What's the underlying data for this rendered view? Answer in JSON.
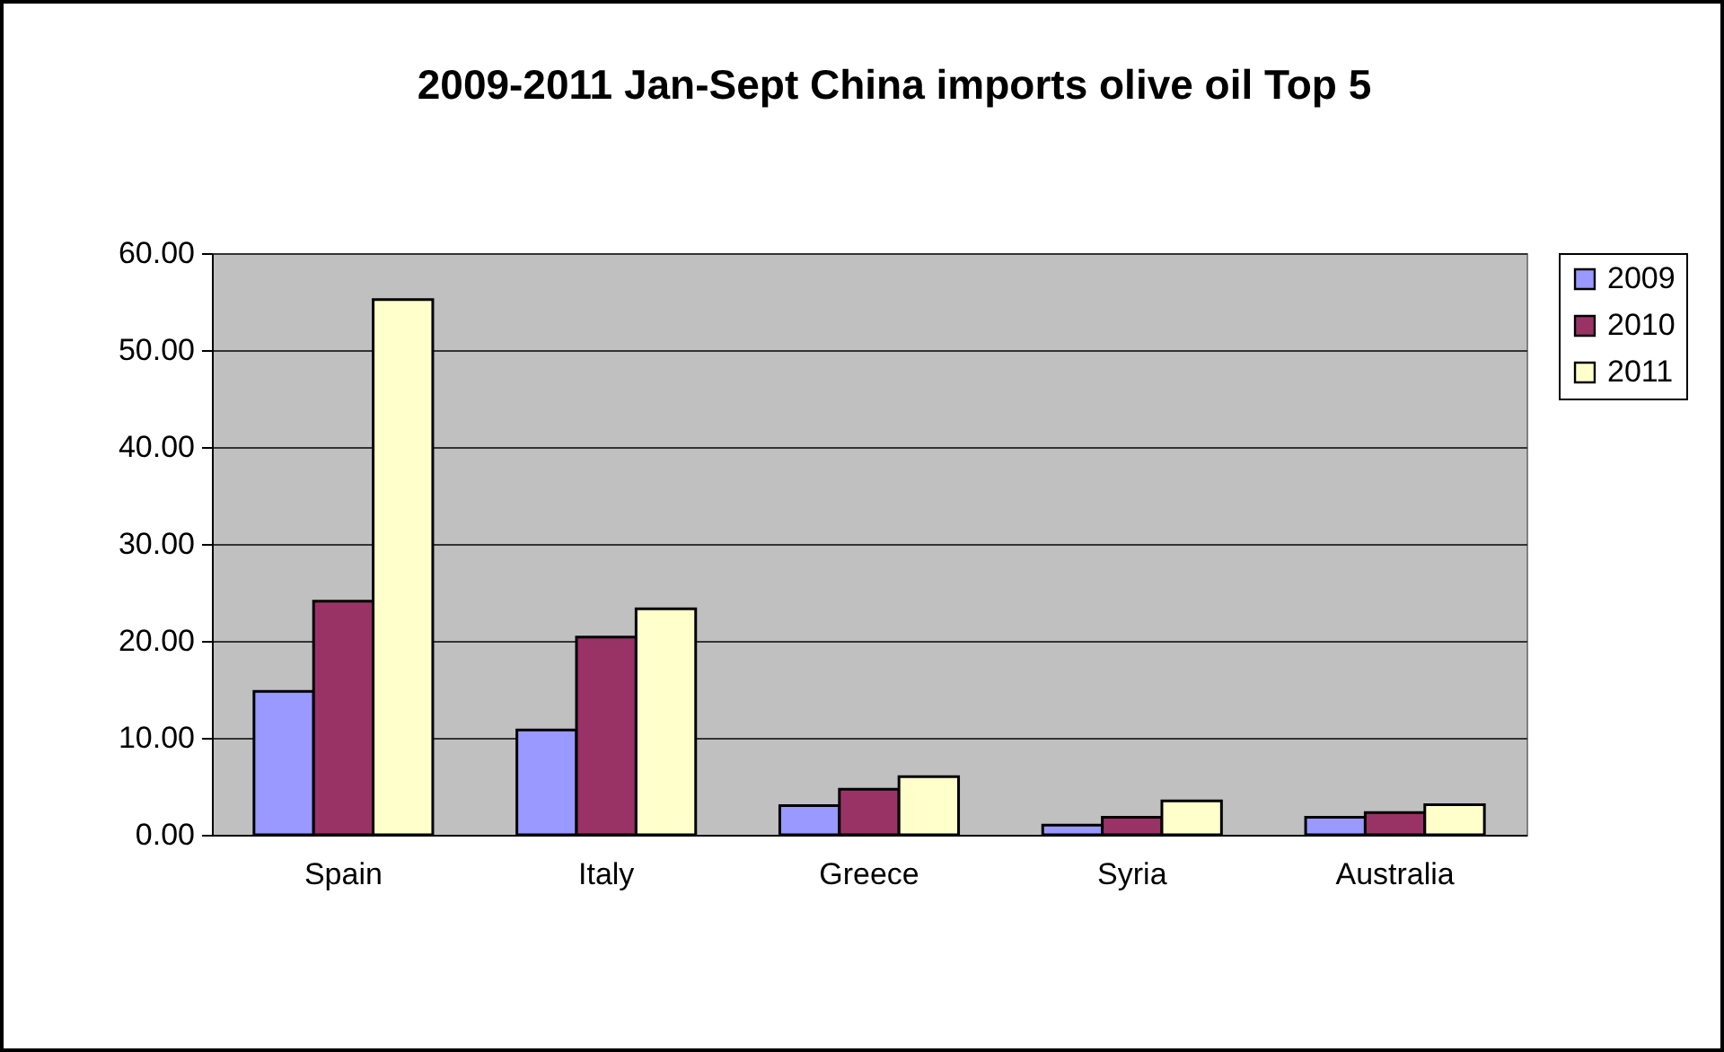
{
  "chart_data": {
    "type": "bar",
    "title": "2009-2011 Jan-Sept China imports olive oil Top 5",
    "categories": [
      "Spain",
      "Italy",
      "Greece",
      "Syria",
      "Australia"
    ],
    "series": [
      {
        "name": "2009",
        "color": "#9999ff",
        "values": [
          14.8,
          10.8,
          3.0,
          1.0,
          1.8
        ]
      },
      {
        "name": "2010",
        "color": "#993366",
        "values": [
          24.1,
          20.4,
          4.7,
          1.8,
          2.3
        ]
      },
      {
        "name": "2011",
        "color": "#ffffcc",
        "values": [
          55.2,
          23.3,
          6.0,
          3.5,
          3.1
        ]
      }
    ],
    "ylim": [
      0,
      60
    ],
    "yticks": [
      {
        "value": 0,
        "label": "0.00"
      },
      {
        "value": 10,
        "label": "10.00"
      },
      {
        "value": 20,
        "label": "20.00"
      },
      {
        "value": 30,
        "label": "30.00"
      },
      {
        "value": 40,
        "label": "40.00"
      },
      {
        "value": 50,
        "label": "50.00"
      },
      {
        "value": 60,
        "label": "60.00"
      }
    ],
    "grid": "y",
    "legend": "right"
  }
}
